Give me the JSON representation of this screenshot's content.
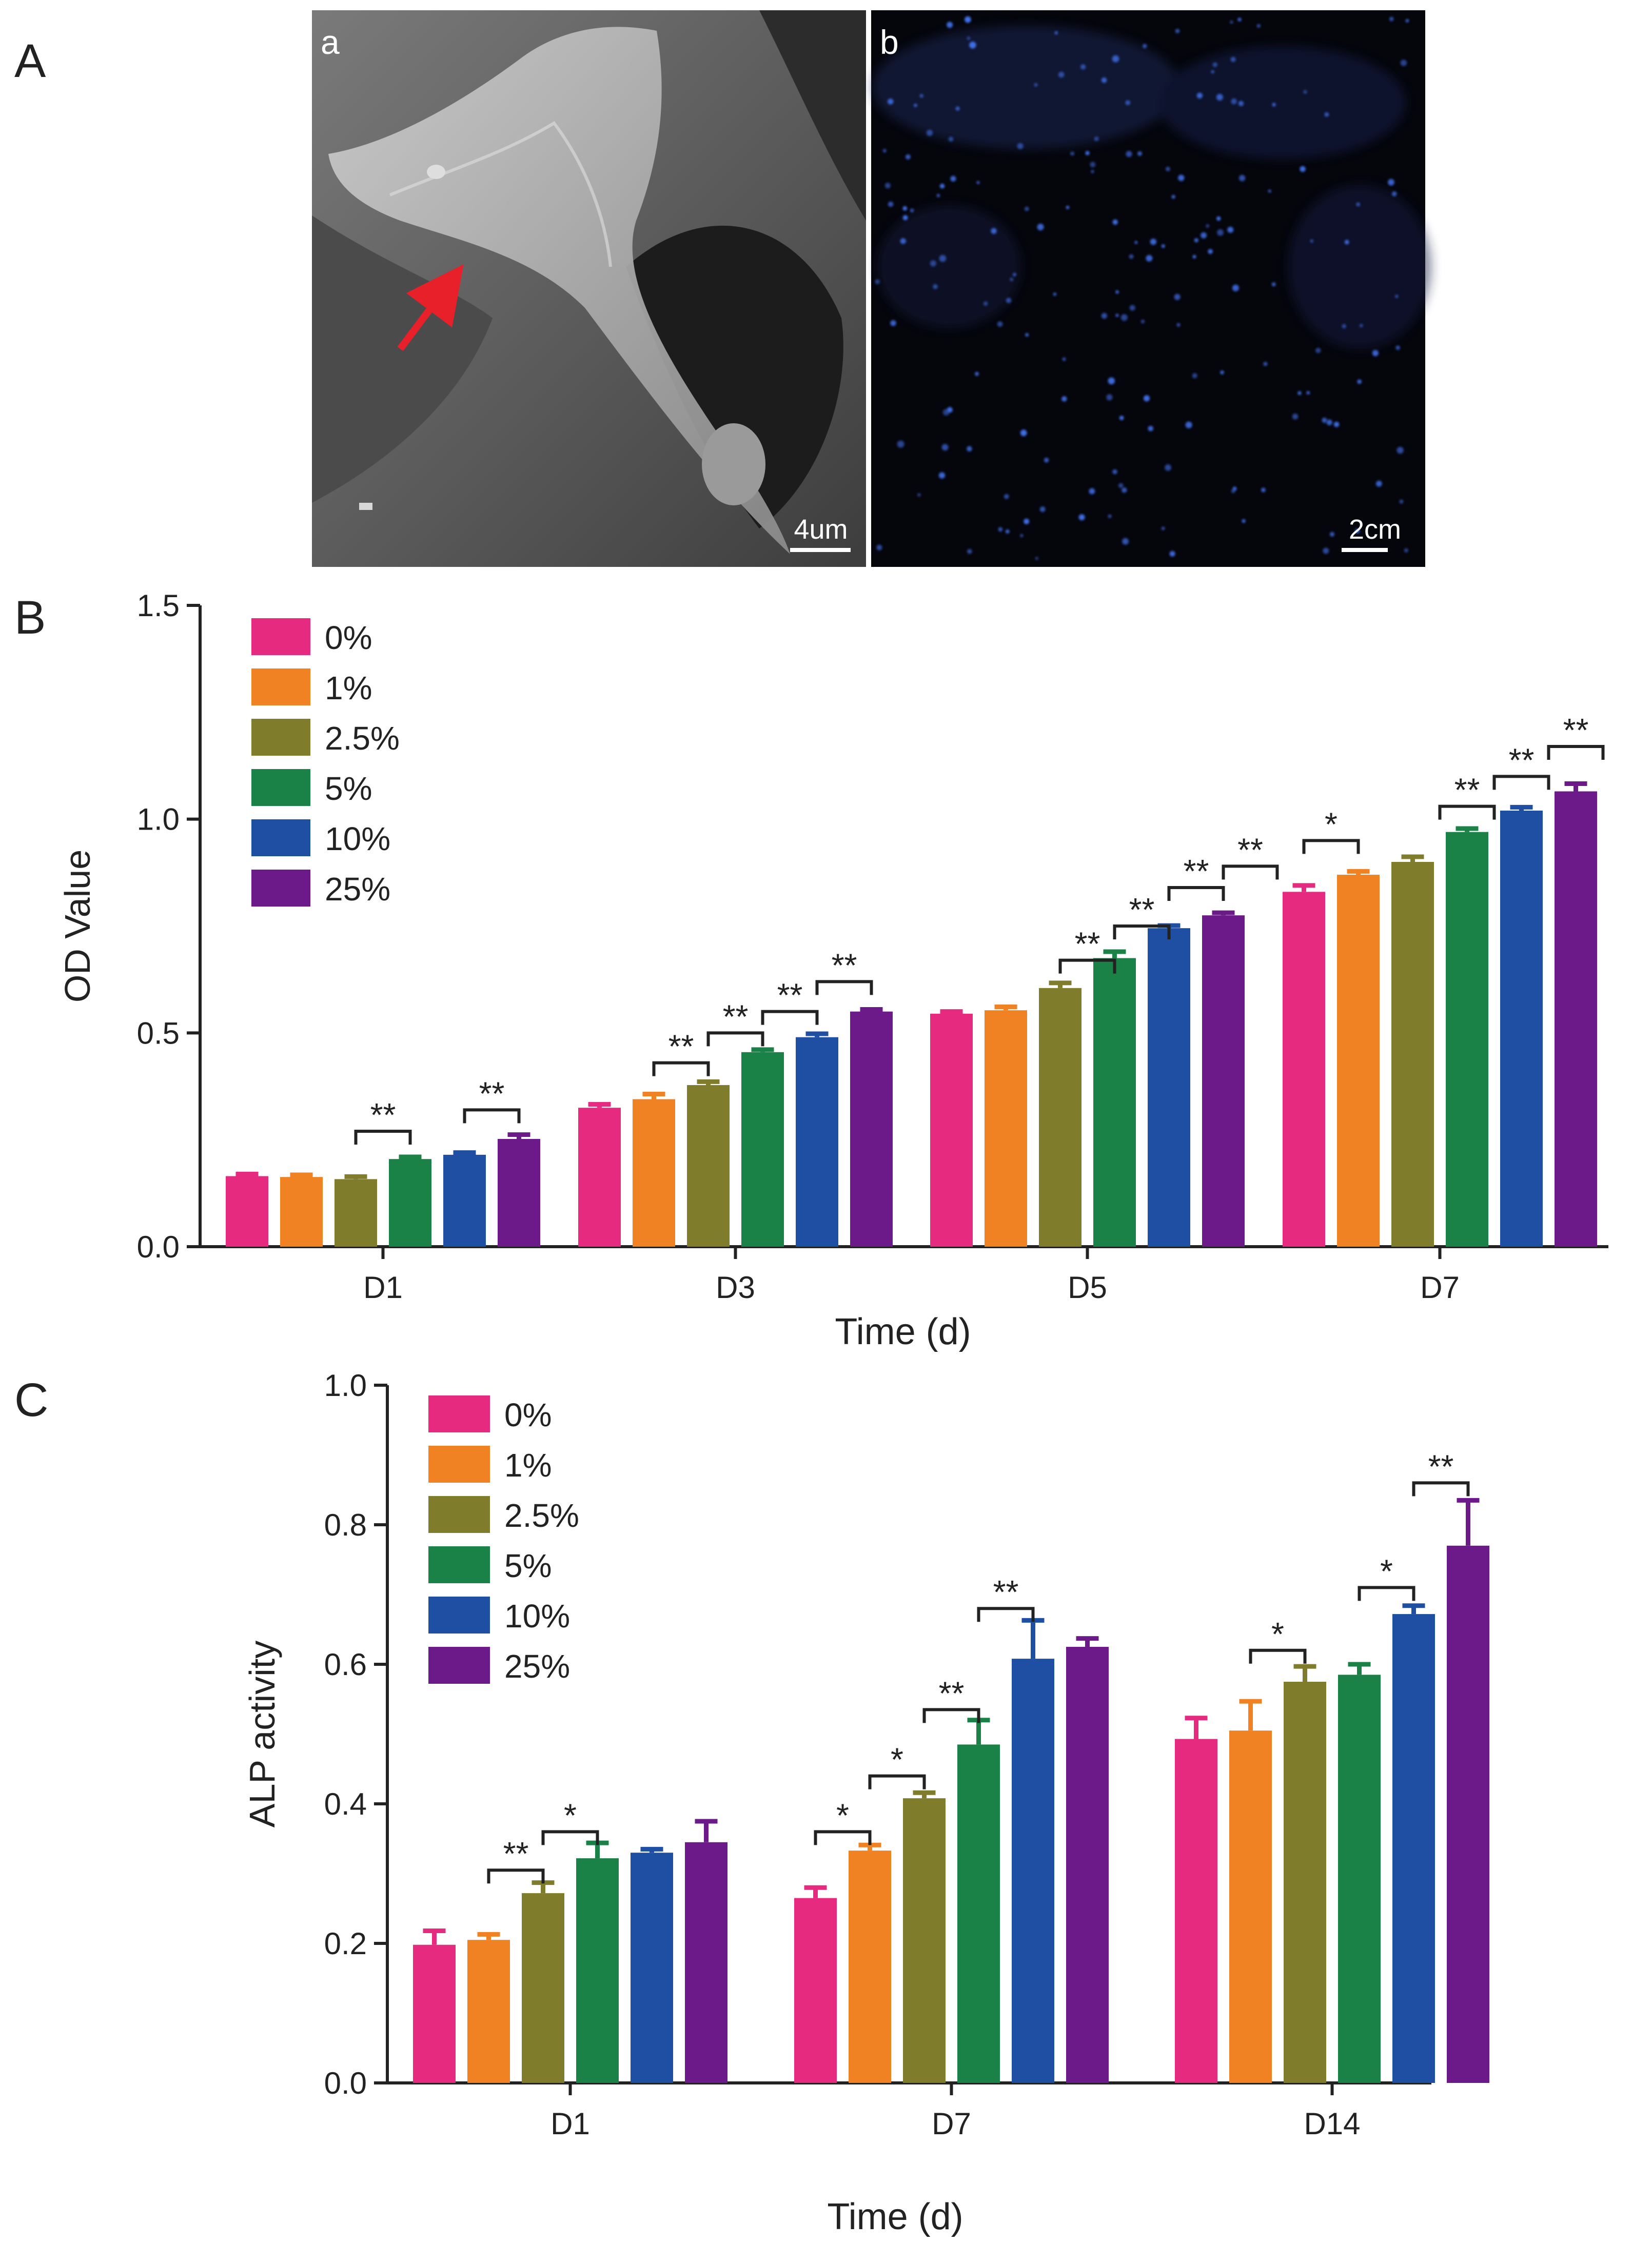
{
  "panels": {
    "A": {
      "label": "A",
      "sub_a": {
        "label": "a",
        "scalebar": "4um"
      },
      "sub_b": {
        "label": "b",
        "scalebar": "2cm"
      }
    },
    "B": {
      "label": "B"
    },
    "C": {
      "label": "C"
    }
  },
  "colors": {
    "0%": "#e62a7f",
    "1%": "#f08224",
    "2.5%": "#7f7d2c",
    "5%": "#1a8246",
    "10%": "#1f4fa2",
    "25%": "#6c1a8a",
    "arrow": "#e8202a",
    "fluor_bg": "#05050c",
    "fluor_dot": "#3f6fe8"
  },
  "chart_data": [
    {
      "id": "B",
      "type": "bar",
      "ylabel": "OD Value",
      "xlabel": "Time (d)",
      "ylim": [
        0,
        1.5
      ],
      "yticks": [
        "0.0",
        "0.5",
        "1.0",
        "1.5"
      ],
      "ytick_values": [
        0,
        0.5,
        1.0,
        1.5
      ],
      "categories": [
        "D1",
        "D3",
        "D5",
        "D7"
      ],
      "legend": [
        "0%",
        "1%",
        "2.5%",
        "5%",
        "10%",
        "25%"
      ],
      "legend_position": "top-left",
      "series": [
        {
          "name": "0%",
          "values": [
            0.165,
            0.325,
            0.545,
            0.83
          ],
          "errors": [
            0.005,
            0.008,
            0.005,
            0.015
          ]
        },
        {
          "name": "1%",
          "values": [
            0.163,
            0.345,
            0.553,
            0.87
          ],
          "errors": [
            0.005,
            0.012,
            0.008,
            0.008
          ]
        },
        {
          "name": "2.5%",
          "values": [
            0.158,
            0.378,
            0.605,
            0.9
          ],
          "errors": [
            0.006,
            0.008,
            0.012,
            0.012
          ]
        },
        {
          "name": "5%",
          "values": [
            0.205,
            0.455,
            0.675,
            0.97
          ],
          "errors": [
            0.005,
            0.006,
            0.015,
            0.008
          ]
        },
        {
          "name": "10%",
          "values": [
            0.215,
            0.49,
            0.745,
            1.02
          ],
          "errors": [
            0.005,
            0.008,
            0.006,
            0.008
          ]
        },
        {
          "name": "25%",
          "values": [
            0.252,
            0.55,
            0.775,
            1.065
          ],
          "errors": [
            0.01,
            0.005,
            0.006,
            0.018
          ]
        }
      ],
      "annotations": [
        {
          "category": 0,
          "from": 2,
          "to": 3,
          "y": 0.27,
          "text": "**"
        },
        {
          "category": 0,
          "from": 4,
          "to": 5,
          "y": 0.32,
          "text": "**"
        },
        {
          "category": 1,
          "from": 1,
          "to": 2,
          "y": 0.43,
          "text": "**"
        },
        {
          "category": 1,
          "from": 2,
          "to": 3,
          "y": 0.5,
          "text": "**"
        },
        {
          "category": 1,
          "from": 3,
          "to": 4,
          "y": 0.55,
          "text": "**"
        },
        {
          "category": 1,
          "from": 4,
          "to": 5,
          "y": 0.62,
          "text": "**"
        },
        {
          "category": 2,
          "from": 2,
          "to": 3,
          "y": 0.67,
          "text": "**"
        },
        {
          "category": 2,
          "from": 3,
          "to": 4,
          "y": 0.75,
          "text": "**"
        },
        {
          "category": 2,
          "from": 4,
          "to": 5,
          "y": 0.84,
          "text": "**"
        },
        {
          "category": 2,
          "from": 5,
          "to": 5.99,
          "y": 0.89,
          "text": "**"
        },
        {
          "category": 3,
          "from": 0,
          "to": 1,
          "y": 0.95,
          "text": "*"
        },
        {
          "category": 3,
          "from": 2.5,
          "to": 3.5,
          "y": 1.03,
          "text": "**"
        },
        {
          "category": 3,
          "from": 3.5,
          "to": 4.5,
          "y": 1.1,
          "text": "**"
        },
        {
          "category": 3,
          "from": 4.5,
          "to": 5.5,
          "y": 1.17,
          "text": "**"
        }
      ]
    },
    {
      "id": "C",
      "type": "bar",
      "ylabel": "ALP activity",
      "xlabel": "Time (d)",
      "ylim": [
        0,
        1.0
      ],
      "yticks": [
        "0.0",
        "0.2",
        "0.4",
        "0.6",
        "0.8",
        "1.0"
      ],
      "ytick_values": [
        0,
        0.2,
        0.4,
        0.6,
        0.8,
        1.0
      ],
      "categories": [
        "D1",
        "D7",
        "D14"
      ],
      "legend": [
        "0%",
        "1%",
        "2.5%",
        "5%",
        "10%",
        "25%"
      ],
      "legend_position": "top-left",
      "series": [
        {
          "name": "0%",
          "values": [
            0.198,
            0.265,
            0.493
          ],
          "errors": [
            0.02,
            0.015,
            0.03
          ]
        },
        {
          "name": "1%",
          "values": [
            0.205,
            0.333,
            0.505
          ],
          "errors": [
            0.008,
            0.008,
            0.042
          ]
        },
        {
          "name": "2.5%",
          "values": [
            0.272,
            0.408,
            0.575
          ],
          "errors": [
            0.015,
            0.008,
            0.022
          ]
        },
        {
          "name": "5%",
          "values": [
            0.322,
            0.485,
            0.585
          ],
          "errors": [
            0.022,
            0.035,
            0.015
          ]
        },
        {
          "name": "10%",
          "values": [
            0.33,
            0.608,
            0.672
          ],
          "errors": [
            0.005,
            0.055,
            0.012
          ]
        },
        {
          "name": "25%",
          "values": [
            0.345,
            0.625,
            0.77
          ],
          "errors": [
            0.03,
            0.012,
            0.065
          ]
        }
      ],
      "annotations": [
        {
          "category": 0,
          "from": 1,
          "to": 2,
          "y": 0.305,
          "text": "**"
        },
        {
          "category": 0,
          "from": 2,
          "to": 3,
          "y": 0.36,
          "text": "*"
        },
        {
          "category": 1,
          "from": 0,
          "to": 1,
          "y": 0.36,
          "text": "*"
        },
        {
          "category": 1,
          "from": 1,
          "to": 2,
          "y": 0.44,
          "text": "*"
        },
        {
          "category": 1,
          "from": 2,
          "to": 3,
          "y": 0.535,
          "text": "**"
        },
        {
          "category": 1,
          "from": 3,
          "to": 4,
          "y": 0.68,
          "text": "**"
        },
        {
          "category": 2,
          "from": 1,
          "to": 2,
          "y": 0.62,
          "text": "*"
        },
        {
          "category": 2,
          "from": 3,
          "to": 4,
          "y": 0.71,
          "text": "*"
        },
        {
          "category": 2,
          "from": 4,
          "to": 5,
          "y": 0.86,
          "text": "**"
        }
      ]
    }
  ]
}
